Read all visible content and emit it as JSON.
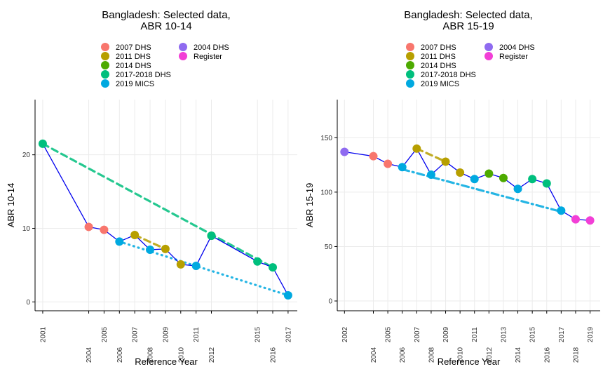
{
  "chart_data": [
    {
      "type": "line",
      "title": [
        "Bangladesh: Selected data,",
        "ABR 10-14"
      ],
      "xlabel": "Reference Year",
      "ylabel": "ABR 10-14",
      "xlim": [
        2000.5,
        2017.6
      ],
      "ylim": [
        -1.2,
        27.5
      ],
      "x_ticks": [
        2001,
        2004,
        2005,
        2006,
        2007,
        2008,
        2009,
        2010,
        2011,
        2012,
        2015,
        2016,
        2017
      ],
      "y_ticks": [
        0,
        10,
        20
      ],
      "grid": true,
      "legend_position": "top",
      "legend": [
        {
          "label": "2007 DHS",
          "color": "#F8766D"
        },
        {
          "label": "2011 DHS",
          "color": "#B79F00"
        },
        {
          "label": "2014 DHS",
          "color": "#4DAA00"
        },
        {
          "label": "2017-2018 DHS",
          "color": "#00BF7D"
        },
        {
          "label": "2019 MICS",
          "color": "#00A9E0"
        },
        {
          "label": "2004 DHS",
          "color": "#8F6BF0"
        },
        {
          "label": "Register",
          "color": "#F23FD6"
        }
      ],
      "series": [
        {
          "label": "2011 DHS",
          "color": "#B79F00",
          "x": [
            2007,
            2009,
            2010
          ],
          "y": [
            9.1,
            7.2,
            5.1
          ]
        },
        {
          "label": "2014 DHS",
          "color": "#4DAA00",
          "x": [
            2012
          ],
          "y": [
            9.0
          ]
        },
        {
          "label": "2017-2018 DHS",
          "color": "#00BF7D",
          "x": [
            2001,
            2012,
            2015,
            2016
          ],
          "y": [
            21.5,
            9.0,
            5.5,
            4.7
          ]
        },
        {
          "label": "2019 MICS",
          "color": "#00A9E0",
          "x": [
            2006,
            2008,
            2011,
            2017
          ],
          "y": [
            8.2,
            7.1,
            4.9,
            0.9
          ]
        },
        {
          "label": "2007 DHS",
          "color": "#F8766D",
          "x": [
            2004,
            2005
          ],
          "y": [
            10.2,
            9.8
          ]
        }
      ],
      "trends": [
        {
          "label": "2017-2018 DHS",
          "color": "#00BF7D",
          "style": "dashed",
          "x": [
            2001,
            2016
          ],
          "y": [
            21.5,
            4.7
          ]
        },
        {
          "label": "2011 DHS",
          "color": "#B79F00",
          "style": "dashed",
          "x": [
            2007,
            2009
          ],
          "y": [
            9.1,
            7.2
          ]
        },
        {
          "label": "2019 MICS",
          "color": "#00A9E0",
          "style": "dotted",
          "x": [
            2006,
            2017
          ],
          "y": [
            8.2,
            0.9
          ]
        }
      ],
      "connector": {
        "color": "#0000EE",
        "x": [
          2001,
          2004,
          2005,
          2006,
          2007,
          2008,
          2009,
          2010,
          2011,
          2012,
          2015,
          2016,
          2017
        ],
        "y": [
          21.5,
          10.2,
          9.8,
          8.2,
          9.1,
          7.1,
          7.2,
          5.1,
          4.9,
          9.0,
          5.5,
          4.7,
          0.9
        ]
      }
    },
    {
      "type": "line",
      "title": [
        "Bangladesh: Selected data,",
        "ABR 15-19"
      ],
      "xlabel": "Reference Year",
      "ylabel": "ABR 15-19",
      "xlim": [
        2001.5,
        2019.7
      ],
      "ylim": [
        -9.0,
        185.0
      ],
      "x_ticks": [
        2002,
        2004,
        2005,
        2006,
        2007,
        2008,
        2009,
        2010,
        2011,
        2012,
        2013,
        2014,
        2015,
        2016,
        2017,
        2018,
        2019
      ],
      "y_ticks": [
        0,
        50,
        100,
        150
      ],
      "grid": true,
      "legend_position": "top",
      "legend": [
        {
          "label": "2007 DHS",
          "color": "#F8766D"
        },
        {
          "label": "2011 DHS",
          "color": "#B79F00"
        },
        {
          "label": "2014 DHS",
          "color": "#4DAA00"
        },
        {
          "label": "2017-2018 DHS",
          "color": "#00BF7D"
        },
        {
          "label": "2019 MICS",
          "color": "#00A9E0"
        },
        {
          "label": "2004 DHS",
          "color": "#8F6BF0"
        },
        {
          "label": "Register",
          "color": "#F23FD6"
        }
      ],
      "series": [
        {
          "label": "2004 DHS",
          "color": "#8F6BF0",
          "x": [
            2002
          ],
          "y": [
            137
          ]
        },
        {
          "label": "2007 DHS",
          "color": "#F8766D",
          "x": [
            2004,
            2005
          ],
          "y": [
            133,
            126
          ]
        },
        {
          "label": "2011 DHS",
          "color": "#B79F00",
          "x": [
            2007,
            2009,
            2010
          ],
          "y": [
            140,
            128,
            118
          ]
        },
        {
          "label": "2014 DHS",
          "color": "#4DAA00",
          "x": [
            2012,
            2013
          ],
          "y": [
            117,
            113
          ]
        },
        {
          "label": "2017-2018 DHS",
          "color": "#00BF7D",
          "x": [
            2015,
            2016
          ],
          "y": [
            112,
            108
          ]
        },
        {
          "label": "2019 MICS",
          "color": "#00A9E0",
          "x": [
            2006,
            2008,
            2011,
            2014,
            2017
          ],
          "y": [
            123,
            116,
            112,
            103,
            83
          ]
        },
        {
          "label": "Register",
          "color": "#F23FD6",
          "x": [
            2018,
            2019
          ],
          "y": [
            75,
            74
          ]
        }
      ],
      "trends": [
        {
          "label": "2011 DHS",
          "color": "#B79F00",
          "style": "dashed",
          "x": [
            2007,
            2009
          ],
          "y": [
            140,
            128
          ]
        },
        {
          "label": "2019 MICS",
          "color": "#00A9E0",
          "style": "dashdot",
          "x": [
            2006,
            2017
          ],
          "y": [
            121,
            82
          ]
        }
      ],
      "connector": {
        "color": "#0000EE",
        "x": [
          2002,
          2004,
          2005,
          2006,
          2007,
          2008,
          2009,
          2010,
          2011,
          2012,
          2013,
          2014,
          2015,
          2016,
          2017,
          2018,
          2019
        ],
        "y": [
          137,
          133,
          126,
          123,
          140,
          116,
          128,
          118,
          112,
          117,
          113,
          103,
          112,
          108,
          83,
          75,
          74
        ]
      }
    }
  ]
}
